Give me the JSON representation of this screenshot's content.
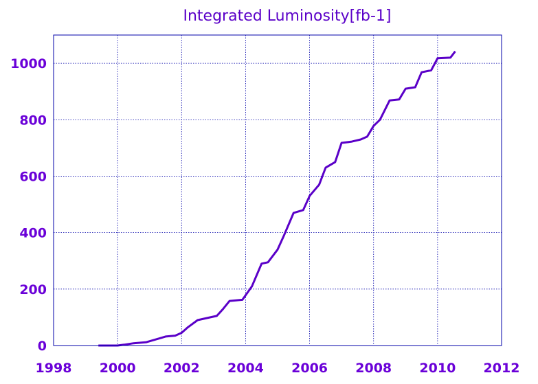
{
  "chart_data": {
    "type": "line",
    "title": "Integrated Luminosity[fb-1]",
    "xlabel": "",
    "ylabel": "",
    "xlim": [
      1998,
      2012
    ],
    "ylim": [
      0,
      1100
    ],
    "x_ticks": [
      1998,
      2000,
      2002,
      2004,
      2006,
      2008,
      2010,
      2012
    ],
    "y_ticks": [
      0,
      200,
      400,
      600,
      800,
      1000
    ],
    "grid": true,
    "colors": {
      "series": "#5a00c8",
      "grid": "#0000aa",
      "text": "#6a00d8"
    },
    "series": [
      {
        "x": [
          1999.4,
          2000.0,
          2000.2,
          2000.5,
          2000.9,
          2001.3,
          2001.5,
          2001.8,
          2002.0,
          2002.2,
          2002.5,
          2002.9,
          2003.1,
          2003.3,
          2003.5,
          2003.7,
          2003.9,
          2004.2,
          2004.5,
          2004.7,
          2005.0,
          2005.2,
          2005.5,
          2005.8,
          2006.0,
          2006.3,
          2006.5,
          2006.8,
          2007.0,
          2007.3,
          2007.6,
          2007.8,
          2008.0,
          2008.2,
          2008.5,
          2008.8,
          2009.0,
          2009.3,
          2009.5,
          2009.8,
          2010.0,
          2010.4,
          2010.55
        ],
        "values": [
          0,
          0,
          3,
          8,
          12,
          25,
          32,
          35,
          45,
          65,
          90,
          100,
          105,
          130,
          158,
          160,
          162,
          210,
          290,
          295,
          340,
          390,
          470,
          480,
          530,
          570,
          630,
          650,
          718,
          722,
          730,
          740,
          778,
          800,
          868,
          872,
          910,
          915,
          968,
          975,
          1018,
          1020,
          1042
        ]
      }
    ]
  }
}
